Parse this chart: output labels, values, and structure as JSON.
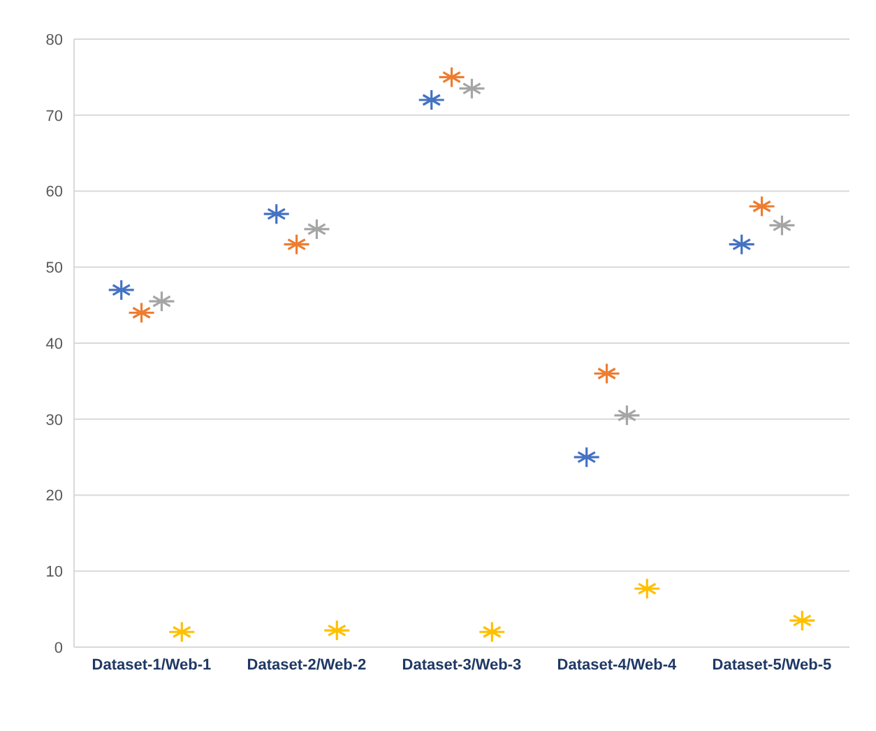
{
  "chart_data": {
    "type": "scatter",
    "categories": [
      "Dataset-1/Web-1",
      "Dataset-2/Web-2",
      "Dataset-3/Web-3",
      "Dataset-4/Web-4",
      "Dataset-5/Web-5"
    ],
    "series": [
      {
        "color": "#4472c4",
        "values": [
          47,
          57,
          72,
          25,
          53
        ]
      },
      {
        "color": "#ed7d31",
        "values": [
          44,
          53,
          75,
          36,
          58
        ]
      },
      {
        "color": "#a5a5a5",
        "values": [
          45.5,
          55,
          73.5,
          30.5,
          55.5
        ]
      },
      {
        "color": "#ffc000",
        "values": [
          2,
          2.2,
          2,
          7.7,
          3.5
        ]
      }
    ],
    "ylim": [
      0,
      80
    ],
    "yticks": [
      0,
      10,
      20,
      30,
      40,
      50,
      60,
      70,
      80
    ],
    "grid": "y",
    "marker": "cross",
    "legend": false
  }
}
